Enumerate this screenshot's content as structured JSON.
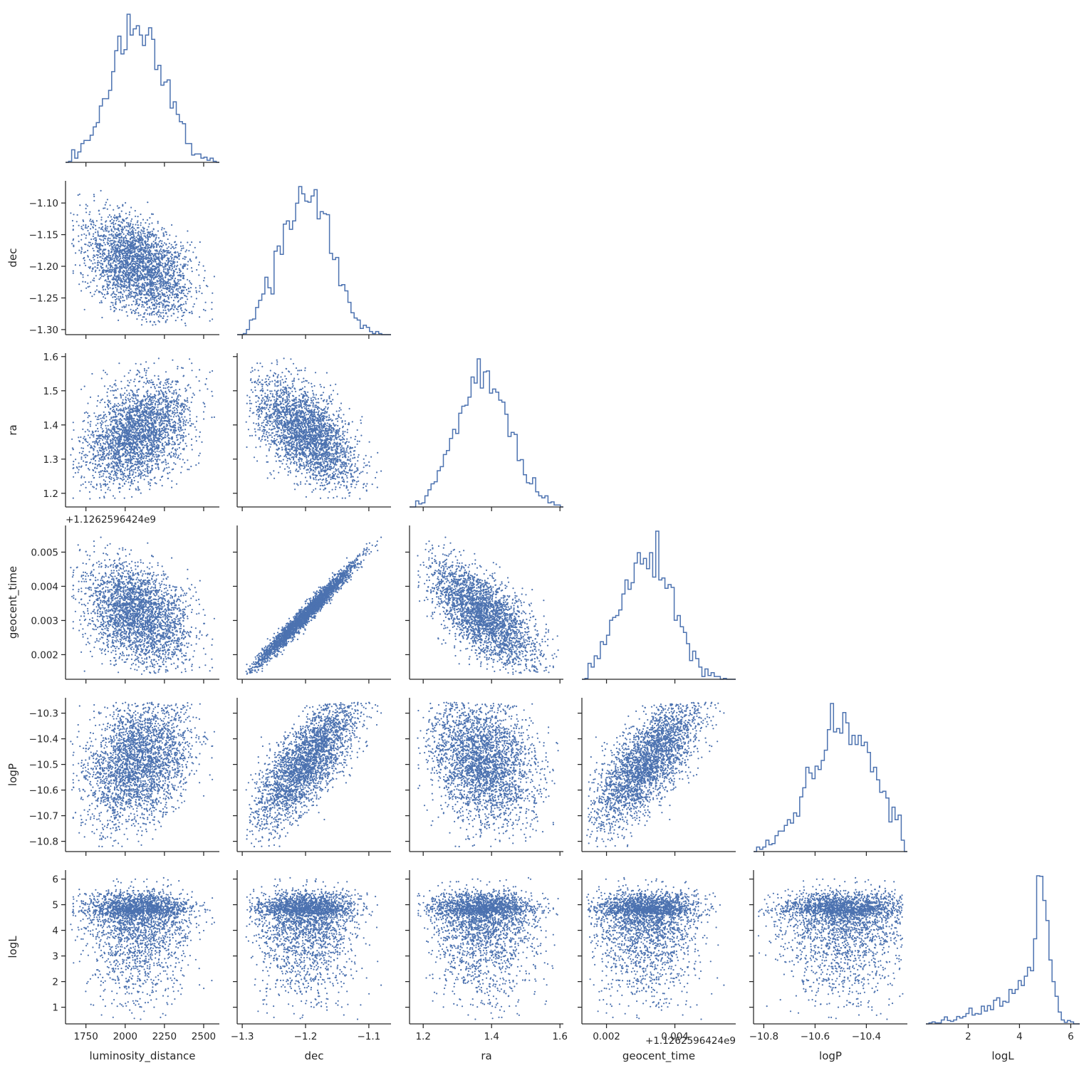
{
  "chart_data": {
    "type": "scatter",
    "title": "",
    "layout": "corner-pairplot",
    "color": "#4c72b0",
    "grid": false,
    "legend": "none",
    "variables": [
      {
        "name": "luminosity_distance",
        "label": "luminosity_distance",
        "range": [
          1620,
          2600
        ],
        "ticks": [
          1750,
          2000,
          2250,
          2500
        ],
        "tick_labels": [
          "1750",
          "2000",
          "2250",
          "2500"
        ],
        "mean": 2080,
        "sd": 170
      },
      {
        "name": "dec",
        "label": "dec",
        "range": [
          -1.308,
          -1.065
        ],
        "ticks": [
          -1.3,
          -1.25,
          -1.2,
          -1.15,
          -1.1
        ],
        "tick_labels": [
          "−1.30",
          "−1.25",
          "−1.20",
          "−1.15",
          "−1.10"
        ],
        "x_ticks": [
          -1.3,
          -1.2,
          -1.1
        ],
        "x_tick_labels": [
          "−1.3",
          "−1.2",
          "−1.1"
        ],
        "mean": -1.198,
        "sd": 0.042
      },
      {
        "name": "ra",
        "label": "ra",
        "range": [
          1.16,
          1.61
        ],
        "ticks": [
          1.2,
          1.3,
          1.4,
          1.5,
          1.6
        ],
        "tick_labels": [
          "1.2",
          "1.3",
          "1.4",
          "1.5",
          "1.6"
        ],
        "x_ticks": [
          1.2,
          1.4,
          1.6
        ],
        "x_tick_labels": [
          "1.2",
          "1.4",
          "1.6"
        ],
        "mean": 1.375,
        "sd": 0.078
      },
      {
        "name": "geocent_time",
        "label": "geocent_time",
        "range": [
          0.00128,
          0.00578
        ],
        "ticks": [
          0.002,
          0.003,
          0.004,
          0.005
        ],
        "tick_labels": [
          "0.002",
          "0.003",
          "0.004",
          "0.005"
        ],
        "x_ticks": [
          0.002,
          0.004
        ],
        "x_tick_labels": [
          "0.002",
          "0.004"
        ],
        "offset_text": "+1.1262596424e9",
        "mean": 0.0032,
        "sd": 0.0008
      },
      {
        "name": "logP",
        "label": "logP",
        "range": [
          -10.84,
          -10.24
        ],
        "ticks": [
          -10.8,
          -10.7,
          -10.6,
          -10.5,
          -10.4,
          -10.3
        ],
        "tick_labels": [
          "−10.8",
          "−10.7",
          "−10.6",
          "−10.5",
          "−10.4",
          "−10.3"
        ],
        "x_ticks": [
          -10.8,
          -10.6,
          -10.4
        ],
        "x_tick_labels": [
          "−10.8",
          "−10.6",
          "−10.4"
        ],
        "mean": -10.49,
        "sd": 0.11
      },
      {
        "name": "logL",
        "label": "logL",
        "range": [
          0.35,
          6.35
        ],
        "ticks": [
          1,
          2,
          3,
          4,
          5,
          6
        ],
        "tick_labels": [
          "1",
          "2",
          "3",
          "4",
          "5",
          "6"
        ],
        "x_ticks": [
          2,
          4,
          6
        ],
        "x_tick_labels": [
          "2",
          "4",
          "6"
        ]
      }
    ],
    "correlations": [
      [
        "luminosity_distance",
        "dec",
        -0.35
      ],
      [
        "luminosity_distance",
        "ra",
        0.35
      ],
      [
        "luminosity_distance",
        "geocent_time",
        -0.3
      ],
      [
        "luminosity_distance",
        "logP",
        0.3
      ],
      [
        "dec",
        "ra",
        -0.55
      ],
      [
        "dec",
        "geocent_time",
        0.985
      ],
      [
        "dec",
        "logP",
        0.88
      ],
      [
        "ra",
        "geocent_time",
        -0.65
      ],
      [
        "ra",
        "logP",
        -0.3
      ],
      [
        "geocent_time",
        "logP",
        0.85
      ]
    ],
    "logL_hist_density": [
      {
        "x": 0.4,
        "d": 0.002
      },
      {
        "x": 1.0,
        "d": 0.01
      },
      {
        "x": 1.5,
        "d": 0.03
      },
      {
        "x": 2.0,
        "d": 0.055
      },
      {
        "x": 2.5,
        "d": 0.08
      },
      {
        "x": 3.0,
        "d": 0.1
      },
      {
        "x": 3.5,
        "d": 0.14
      },
      {
        "x": 4.0,
        "d": 0.2
      },
      {
        "x": 4.3,
        "d": 0.27
      },
      {
        "x": 4.5,
        "d": 0.36
      },
      {
        "x": 4.65,
        "d": 0.5
      },
      {
        "x": 4.75,
        "d": 0.98
      },
      {
        "x": 4.85,
        "d": 1.0
      },
      {
        "x": 4.95,
        "d": 0.72
      },
      {
        "x": 5.1,
        "d": 0.48
      },
      {
        "x": 5.3,
        "d": 0.3
      },
      {
        "x": 5.45,
        "d": 0.14
      },
      {
        "x": 5.6,
        "d": 0.06
      },
      {
        "x": 5.8,
        "d": 0.02
      },
      {
        "x": 6.1,
        "d": 0.003
      }
    ],
    "histogram_bins": 50,
    "scatter_points_per_panel": 3000
  }
}
